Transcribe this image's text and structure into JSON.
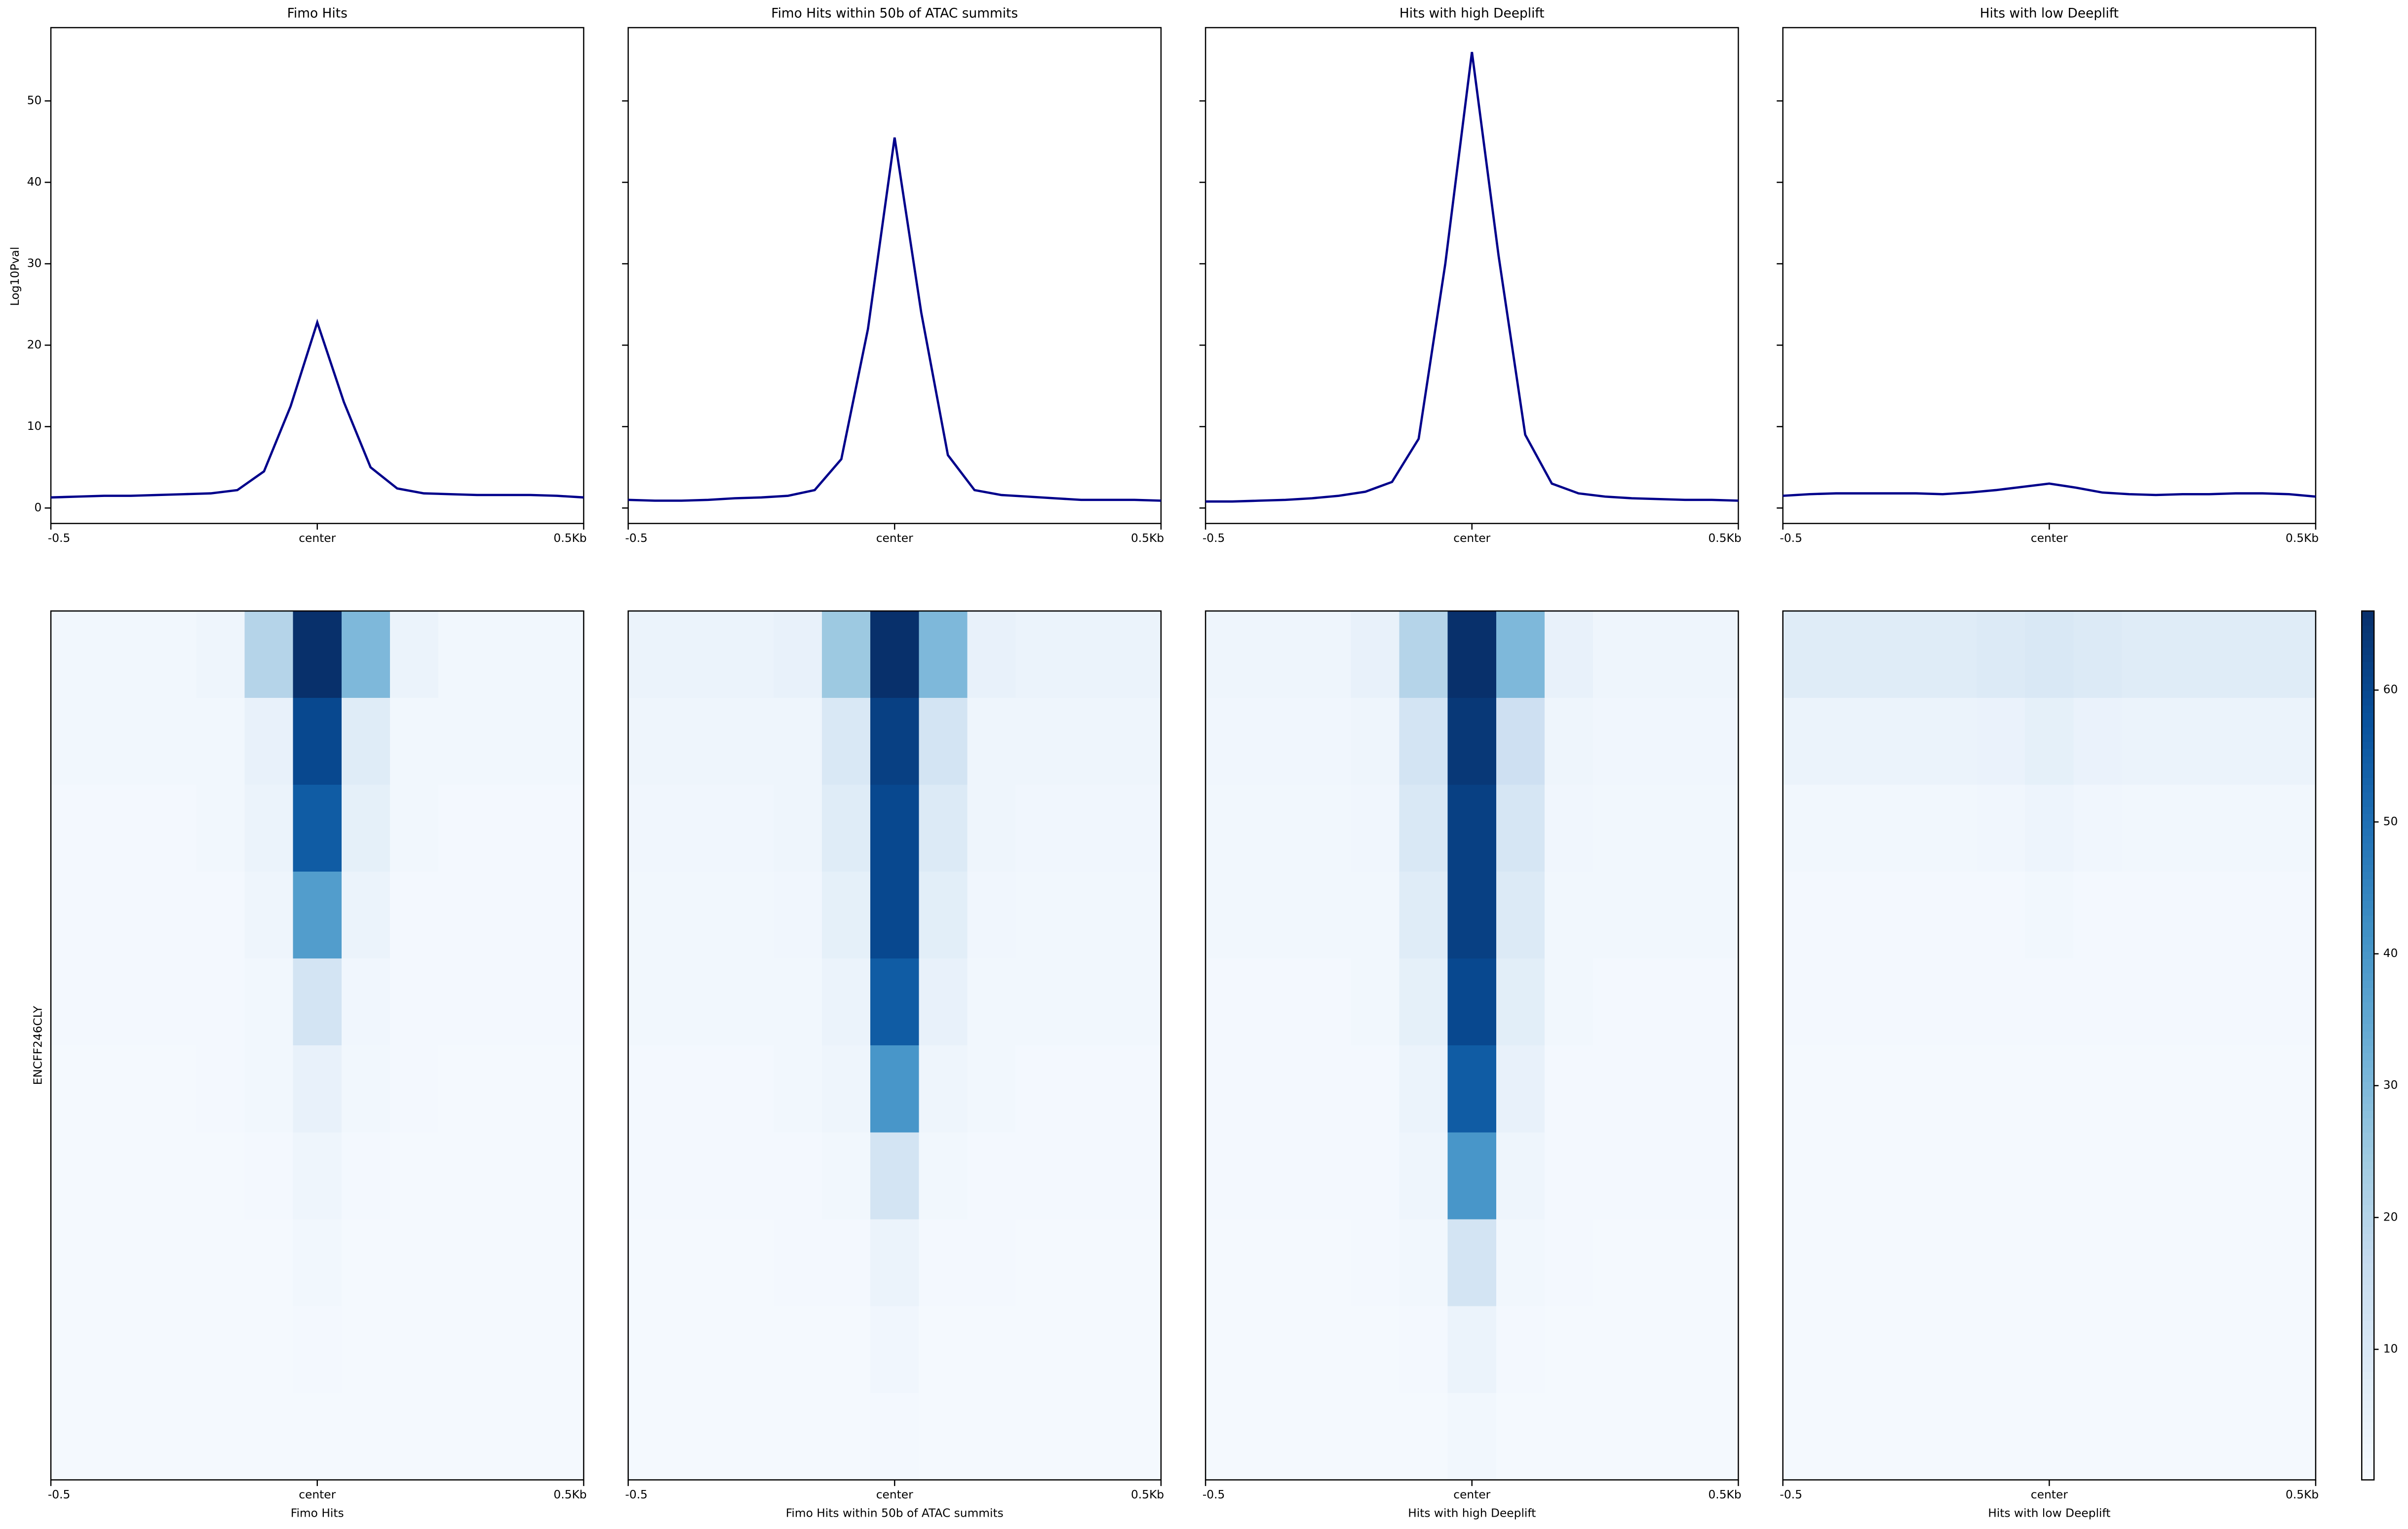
{
  "chart_data": {
    "type": "profile-heatmap",
    "ylabel": "Log10Pval",
    "heatmap_ylabel": "ENCFF246CLY",
    "line_color": "#00008b",
    "x": [
      -0.5,
      -0.45,
      -0.4,
      -0.35,
      -0.3,
      -0.25,
      -0.2,
      -0.15,
      -0.1,
      -0.05,
      0,
      0.05,
      0.1,
      0.15,
      0.2,
      0.25,
      0.3,
      0.35,
      0.4,
      0.45,
      0.5
    ],
    "xlim": [
      -0.5,
      0.5
    ],
    "xticks": [
      {
        "value": -0.5,
        "label": "-0.5"
      },
      {
        "value": 0,
        "label": "center"
      },
      {
        "value": 0.5,
        "label": "0.5Kb"
      }
    ],
    "ylim": [
      -1.9,
      59
    ],
    "yticks": [
      0,
      10,
      20,
      30,
      40,
      50
    ],
    "heatmap_x": [
      -0.5,
      -0.4,
      -0.3,
      -0.2,
      -0.1,
      0,
      0.1,
      0.2,
      0.3,
      0.4,
      0.5
    ],
    "colormap": [
      "#f7fbff",
      "#deebf7",
      "#c6dbef",
      "#9ecae1",
      "#6baed6",
      "#4292c6",
      "#2171b5",
      "#08519c",
      "#08306b"
    ],
    "clim": [
      0.1,
      66
    ],
    "cticks": [
      10,
      20,
      30,
      40,
      50,
      60
    ],
    "panels": [
      {
        "title": "Fimo Hits",
        "values": [
          1.3,
          1.4,
          1.5,
          1.5,
          1.6,
          1.7,
          1.8,
          2.2,
          4.5,
          12.5,
          22.8,
          13,
          5,
          2.4,
          1.8,
          1.7,
          1.6,
          1.6,
          1.6,
          1.5,
          1.3
        ],
        "matrix": [
          [
            2,
            2,
            2,
            3,
            20,
            66,
            30,
            4,
            2,
            2,
            2
          ],
          [
            2,
            2,
            2,
            2,
            5,
            60,
            8,
            2,
            2,
            2,
            2
          ],
          [
            1.5,
            1.5,
            1.5,
            2,
            4,
            55,
            6,
            2,
            1.5,
            1.5,
            1.5
          ],
          [
            1.5,
            1.5,
            1.5,
            1.5,
            3,
            38,
            4,
            1.5,
            1.5,
            1.5,
            1.5
          ],
          [
            1.5,
            1.5,
            1.5,
            1.5,
            2,
            12,
            2.5,
            1.5,
            1.5,
            1.5,
            1.5
          ],
          [
            1.2,
            1.2,
            1.2,
            1.5,
            2,
            5,
            2,
            1.5,
            1.2,
            1.2,
            1.2
          ],
          [
            1.2,
            1.2,
            1.2,
            1.2,
            1.5,
            3,
            1.5,
            1.2,
            1.2,
            1.2,
            1.2
          ],
          [
            1.2,
            1.2,
            1.2,
            1.2,
            1.2,
            2,
            1.2,
            1.2,
            1.2,
            1.2,
            1.2
          ],
          [
            1.2,
            1.2,
            1.2,
            1.2,
            1.2,
            1.5,
            1.2,
            1.2,
            1.2,
            1.2,
            1.2
          ],
          [
            1.2,
            1.2,
            1.2,
            1.2,
            1.2,
            1.2,
            1.2,
            1.2,
            1.2,
            1.2,
            1.2
          ]
        ]
      },
      {
        "title": "Fimo Hits within 50b of ATAC summits",
        "values": [
          1.0,
          0.9,
          0.9,
          1.0,
          1.2,
          1.3,
          1.5,
          2.2,
          6,
          22,
          45.5,
          24,
          6.5,
          2.2,
          1.6,
          1.4,
          1.2,
          1.0,
          1.0,
          1.0,
          0.9
        ],
        "matrix": [
          [
            4,
            4,
            4,
            5,
            25,
            66,
            30,
            5,
            4,
            4,
            4
          ],
          [
            3,
            3,
            3,
            3,
            10,
            62,
            12,
            3,
            3,
            3,
            3
          ],
          [
            2.5,
            2.5,
            2.5,
            3,
            8,
            60,
            9,
            3,
            2.5,
            2.5,
            2.5
          ],
          [
            2,
            2,
            2,
            2.5,
            6,
            60,
            7,
            2.5,
            2,
            2,
            2
          ],
          [
            2,
            2,
            2,
            2,
            4,
            55,
            5,
            2,
            2,
            2,
            2
          ],
          [
            1.5,
            1.5,
            1.5,
            2,
            3,
            40,
            3,
            2,
            1.5,
            1.5,
            1.5
          ],
          [
            1.5,
            1.5,
            1.5,
            1.5,
            2,
            12,
            2,
            1.5,
            1.5,
            1.5,
            1.5
          ],
          [
            1.2,
            1.2,
            1.2,
            1.5,
            1.5,
            4,
            1.5,
            1.5,
            1.2,
            1.2,
            1.2
          ],
          [
            1.2,
            1.2,
            1.2,
            1.2,
            1.2,
            2.5,
            1.2,
            1.2,
            1.2,
            1.2,
            1.2
          ],
          [
            1.2,
            1.2,
            1.2,
            1.2,
            1.2,
            1.5,
            1.2,
            1.2,
            1.2,
            1.2,
            1.2
          ]
        ]
      },
      {
        "title": "Hits with high Deeplift",
        "values": [
          0.8,
          0.8,
          0.9,
          1.0,
          1.2,
          1.5,
          2,
          3.2,
          8.5,
          30,
          56,
          31,
          9,
          3,
          1.8,
          1.4,
          1.2,
          1.1,
          1,
          1,
          0.9
        ],
        "matrix": [
          [
            3,
            3,
            3,
            5,
            20,
            66,
            30,
            5,
            3,
            3,
            3
          ],
          [
            2.5,
            2.5,
            2.5,
            3,
            12,
            64,
            14,
            3,
            2.5,
            2.5,
            2.5
          ],
          [
            2,
            2,
            2,
            2.5,
            10,
            62,
            11,
            2.5,
            2,
            2,
            2
          ],
          [
            2,
            2,
            2,
            2,
            8,
            62,
            9,
            2,
            2,
            2,
            2
          ],
          [
            1.5,
            1.5,
            1.5,
            2,
            6,
            60,
            7,
            2,
            1.5,
            1.5,
            1.5
          ],
          [
            1.5,
            1.5,
            1.5,
            1.5,
            4,
            55,
            5,
            1.5,
            1.5,
            1.5,
            1.5
          ],
          [
            1.5,
            1.5,
            1.5,
            1.5,
            3,
            40,
            3,
            1.5,
            1.5,
            1.5,
            1.5
          ],
          [
            1.2,
            1.2,
            1.2,
            1.5,
            2,
            12,
            2,
            1.5,
            1.2,
            1.2,
            1.2
          ],
          [
            1.2,
            1.2,
            1.2,
            1.2,
            1.5,
            4,
            1.5,
            1.2,
            1.2,
            1.2,
            1.2
          ],
          [
            1.2,
            1.2,
            1.2,
            1.2,
            1.2,
            2,
            1.2,
            1.2,
            1.2,
            1.2,
            1.2
          ]
        ]
      },
      {
        "title": "Hits with low Deeplift",
        "values": [
          1.5,
          1.7,
          1.8,
          1.8,
          1.8,
          1.8,
          1.7,
          1.9,
          2.2,
          2.6,
          3.0,
          2.5,
          1.9,
          1.7,
          1.6,
          1.7,
          1.7,
          1.8,
          1.8,
          1.7,
          1.4
        ],
        "matrix": [
          [
            8,
            8,
            8,
            8,
            9,
            10,
            9,
            8,
            8,
            8,
            8
          ],
          [
            4,
            4,
            4,
            4,
            4.5,
            6,
            4.5,
            4,
            4,
            4,
            4
          ],
          [
            2,
            2,
            2,
            2,
            2.5,
            3.5,
            2.5,
            2,
            2,
            2,
            2
          ],
          [
            1.5,
            1.5,
            1.5,
            1.5,
            1.5,
            2,
            1.5,
            1.5,
            1.5,
            1.5,
            1.5
          ],
          [
            1.5,
            1.5,
            1.5,
            1.5,
            1.5,
            1.5,
            1.5,
            1.5,
            1.5,
            1.5,
            1.5
          ],
          [
            1.2,
            1.2,
            1.2,
            1.2,
            1.2,
            1.2,
            1.2,
            1.2,
            1.2,
            1.2,
            1.2
          ],
          [
            1.2,
            1.2,
            1.2,
            1.2,
            1.2,
            1.2,
            1.2,
            1.2,
            1.2,
            1.2,
            1.2
          ],
          [
            1.2,
            1.2,
            1.2,
            1.2,
            1.2,
            1.2,
            1.2,
            1.2,
            1.2,
            1.2,
            1.2
          ],
          [
            1.2,
            1.2,
            1.2,
            1.2,
            1.2,
            1.2,
            1.2,
            1.2,
            1.2,
            1.2,
            1.2
          ],
          [
            1.2,
            1.2,
            1.2,
            1.2,
            1.2,
            1.2,
            1.2,
            1.2,
            1.2,
            1.2,
            1.2
          ]
        ]
      }
    ]
  }
}
